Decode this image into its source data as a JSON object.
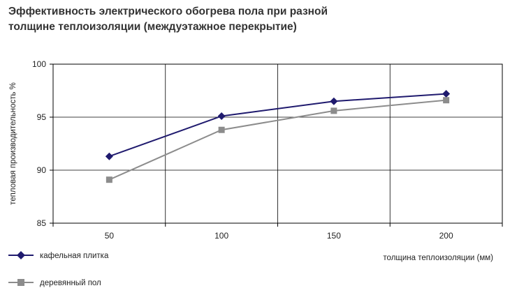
{
  "title": {
    "line1": "Эффективность электрического обогрева пола при разной",
    "line2": "толщине теплоизоляции (междуэтажное перекрытие)"
  },
  "chart_data": {
    "type": "line",
    "title": "Эффективность электрического обогрева пола при разной толщине теплоизоляции (междуэтажное перекрытие)",
    "xlabel": "толщина теплоизоляции (мм)",
    "ylabel": "тепловая производительность %",
    "categories": [
      "50",
      "100",
      "150",
      "200"
    ],
    "ylim": [
      85,
      100
    ],
    "yticks": [
      85,
      90,
      95,
      100
    ],
    "grid": true,
    "legend_position": "bottom-left",
    "series": [
      {
        "name": "кафельная плитка",
        "values": [
          91.3,
          95.1,
          96.5,
          97.2
        ],
        "color": "#1f1a6e",
        "marker": "diamond"
      },
      {
        "name": "деревянный пол",
        "values": [
          89.1,
          93.8,
          95.6,
          96.6
        ],
        "color": "#8c8c8c",
        "marker": "square"
      }
    ]
  }
}
